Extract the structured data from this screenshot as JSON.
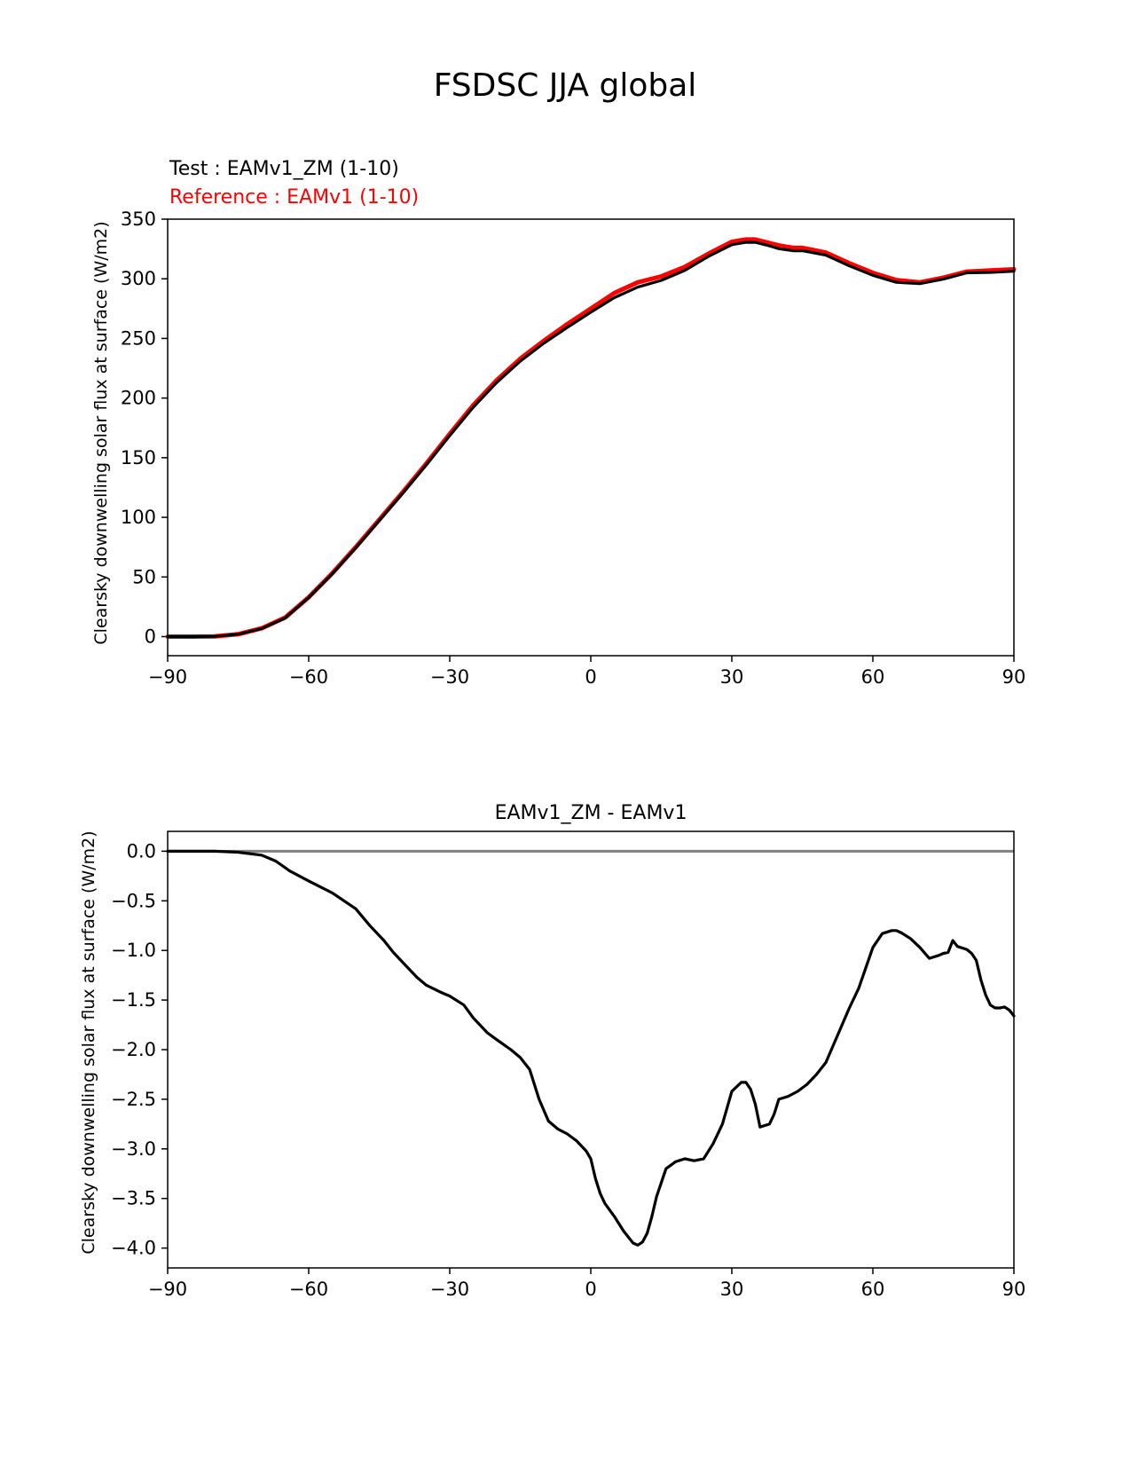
{
  "figure_title": "FSDSC JJA global",
  "chart_data": [
    {
      "type": "line",
      "legend_test": "Test : EAMv1_ZM (1-10)",
      "legend_reference": "Reference : EAMv1 (1-10)",
      "ylabel": "Clearsky downwelling solar flux at surface (W/m2)",
      "xlabel": "",
      "xlim": [
        -90,
        90
      ],
      "ylim": [
        -16,
        350
      ],
      "xticks": [
        -90,
        -60,
        -30,
        0,
        30,
        60,
        90
      ],
      "xtick_labels": [
        "−90",
        "−60",
        "−30",
        "0",
        "30",
        "60",
        "90"
      ],
      "yticks": [
        0,
        50,
        100,
        150,
        200,
        250,
        300,
        350
      ],
      "ytick_labels": [
        "0",
        "50",
        "100",
        "150",
        "200",
        "250",
        "300",
        "350"
      ],
      "series": [
        {
          "name": "EAMv1 (reference)",
          "color": "#ff0000",
          "x": [
            -90,
            -85,
            -80,
            -75,
            -70,
            -65,
            -60,
            -55,
            -50,
            -45,
            -40,
            -35,
            -30,
            -25,
            -20,
            -15,
            -10,
            -5,
            0,
            5,
            10,
            15,
            20,
            25,
            30,
            33,
            35,
            38,
            40,
            43,
            45,
            50,
            55,
            60,
            65,
            70,
            75,
            80,
            85,
            90
          ],
          "y": [
            0,
            0,
            0.2,
            2,
            7,
            16,
            33,
            53,
            75,
            98,
            121,
            145,
            170,
            194,
            215,
            233,
            248,
            262,
            275,
            288,
            297,
            302,
            310,
            321,
            331,
            333,
            333,
            330,
            328,
            326,
            326,
            322,
            313,
            305,
            299,
            297,
            301,
            306,
            307,
            308
          ]
        },
        {
          "name": "EAMv1_ZM (test)",
          "color": "#000000",
          "x": [
            -90,
            -85,
            -80,
            -75,
            -70,
            -65,
            -60,
            -55,
            -50,
            -45,
            -40,
            -35,
            -30,
            -25,
            -20,
            -15,
            -10,
            -5,
            0,
            5,
            10,
            15,
            20,
            25,
            30,
            33,
            35,
            38,
            40,
            43,
            45,
            50,
            55,
            60,
            65,
            70,
            75,
            80,
            85,
            90
          ],
          "y": [
            0,
            0,
            0.2,
            2,
            6.8,
            15.6,
            32.7,
            52.6,
            74.4,
            97.2,
            120.2,
            143.9,
            168.5,
            192.3,
            213.1,
            230.9,
            245.9,
            259.2,
            272,
            284.2,
            293,
            298.7,
            307,
            318.7,
            328.6,
            330.6,
            330.6,
            327.6,
            325.2,
            323.5,
            323.6,
            319.8,
            310.8,
            302.9,
            297,
            295.9,
            299.7,
            305,
            305.4,
            306.3
          ]
        }
      ]
    },
    {
      "type": "line",
      "title": "EAMv1_ZM - EAMv1",
      "ylabel": "Clearsky downwelling solar flux at surface (W/m2)",
      "xlabel": "",
      "xlim": [
        -90,
        90
      ],
      "ylim": [
        -4.2,
        0.2
      ],
      "xticks": [
        -90,
        -60,
        -30,
        0,
        30,
        60,
        90
      ],
      "xtick_labels": [
        "−90",
        "−60",
        "−30",
        "0",
        "30",
        "60",
        "90"
      ],
      "yticks": [
        0.0,
        -0.5,
        -1.0,
        -1.5,
        -2.0,
        -2.5,
        -3.0,
        -3.5,
        -4.0
      ],
      "ytick_labels": [
        "0.0",
        "−0.5",
        "−1.0",
        "−1.5",
        "−2.0",
        "−2.5",
        "−3.0",
        "−3.5",
        "−4.0"
      ],
      "zero_line_color": "#808080",
      "series": [
        {
          "name": "difference",
          "color": "#000000",
          "x": [
            -90,
            -80,
            -75,
            -70,
            -67,
            -64,
            -60,
            -55,
            -50,
            -47,
            -44,
            -42,
            -40,
            -37,
            -35,
            -32,
            -30,
            -27,
            -25,
            -22,
            -20,
            -17,
            -15,
            -13,
            -11,
            -9,
            -7,
            -5,
            -3,
            -1,
            0,
            1,
            2,
            3,
            5,
            7,
            9,
            10,
            11,
            12,
            13,
            14,
            16,
            18,
            20,
            22,
            24,
            26,
            28,
            30,
            32,
            33,
            34,
            35,
            36,
            38,
            39,
            40,
            42,
            44,
            46,
            48,
            50,
            53,
            55,
            57,
            60,
            62,
            64,
            65,
            66,
            68,
            70,
            72,
            74,
            75,
            76,
            77,
            78,
            80,
            81,
            82,
            83,
            84,
            85,
            86,
            87,
            88,
            89,
            90
          ],
          "y": [
            0,
            0,
            -0.01,
            -0.04,
            -0.1,
            -0.2,
            -0.3,
            -0.42,
            -0.58,
            -0.75,
            -0.9,
            -1.02,
            -1.12,
            -1.27,
            -1.35,
            -1.42,
            -1.46,
            -1.55,
            -1.68,
            -1.83,
            -1.9,
            -2.0,
            -2.08,
            -2.2,
            -2.5,
            -2.72,
            -2.8,
            -2.85,
            -2.92,
            -3.02,
            -3.1,
            -3.3,
            -3.45,
            -3.55,
            -3.68,
            -3.83,
            -3.95,
            -3.97,
            -3.94,
            -3.85,
            -3.68,
            -3.48,
            -3.2,
            -3.13,
            -3.1,
            -3.12,
            -3.1,
            -2.95,
            -2.75,
            -2.42,
            -2.33,
            -2.33,
            -2.4,
            -2.55,
            -2.78,
            -2.75,
            -2.65,
            -2.5,
            -2.47,
            -2.42,
            -2.35,
            -2.25,
            -2.13,
            -1.8,
            -1.58,
            -1.38,
            -0.97,
            -0.83,
            -0.8,
            -0.8,
            -0.82,
            -0.88,
            -0.97,
            -1.08,
            -1.05,
            -1.03,
            -1.02,
            -0.9,
            -0.96,
            -0.99,
            -1.03,
            -1.1,
            -1.3,
            -1.45,
            -1.55,
            -1.58,
            -1.58,
            -1.57,
            -1.6,
            -1.66
          ]
        }
      ]
    }
  ]
}
